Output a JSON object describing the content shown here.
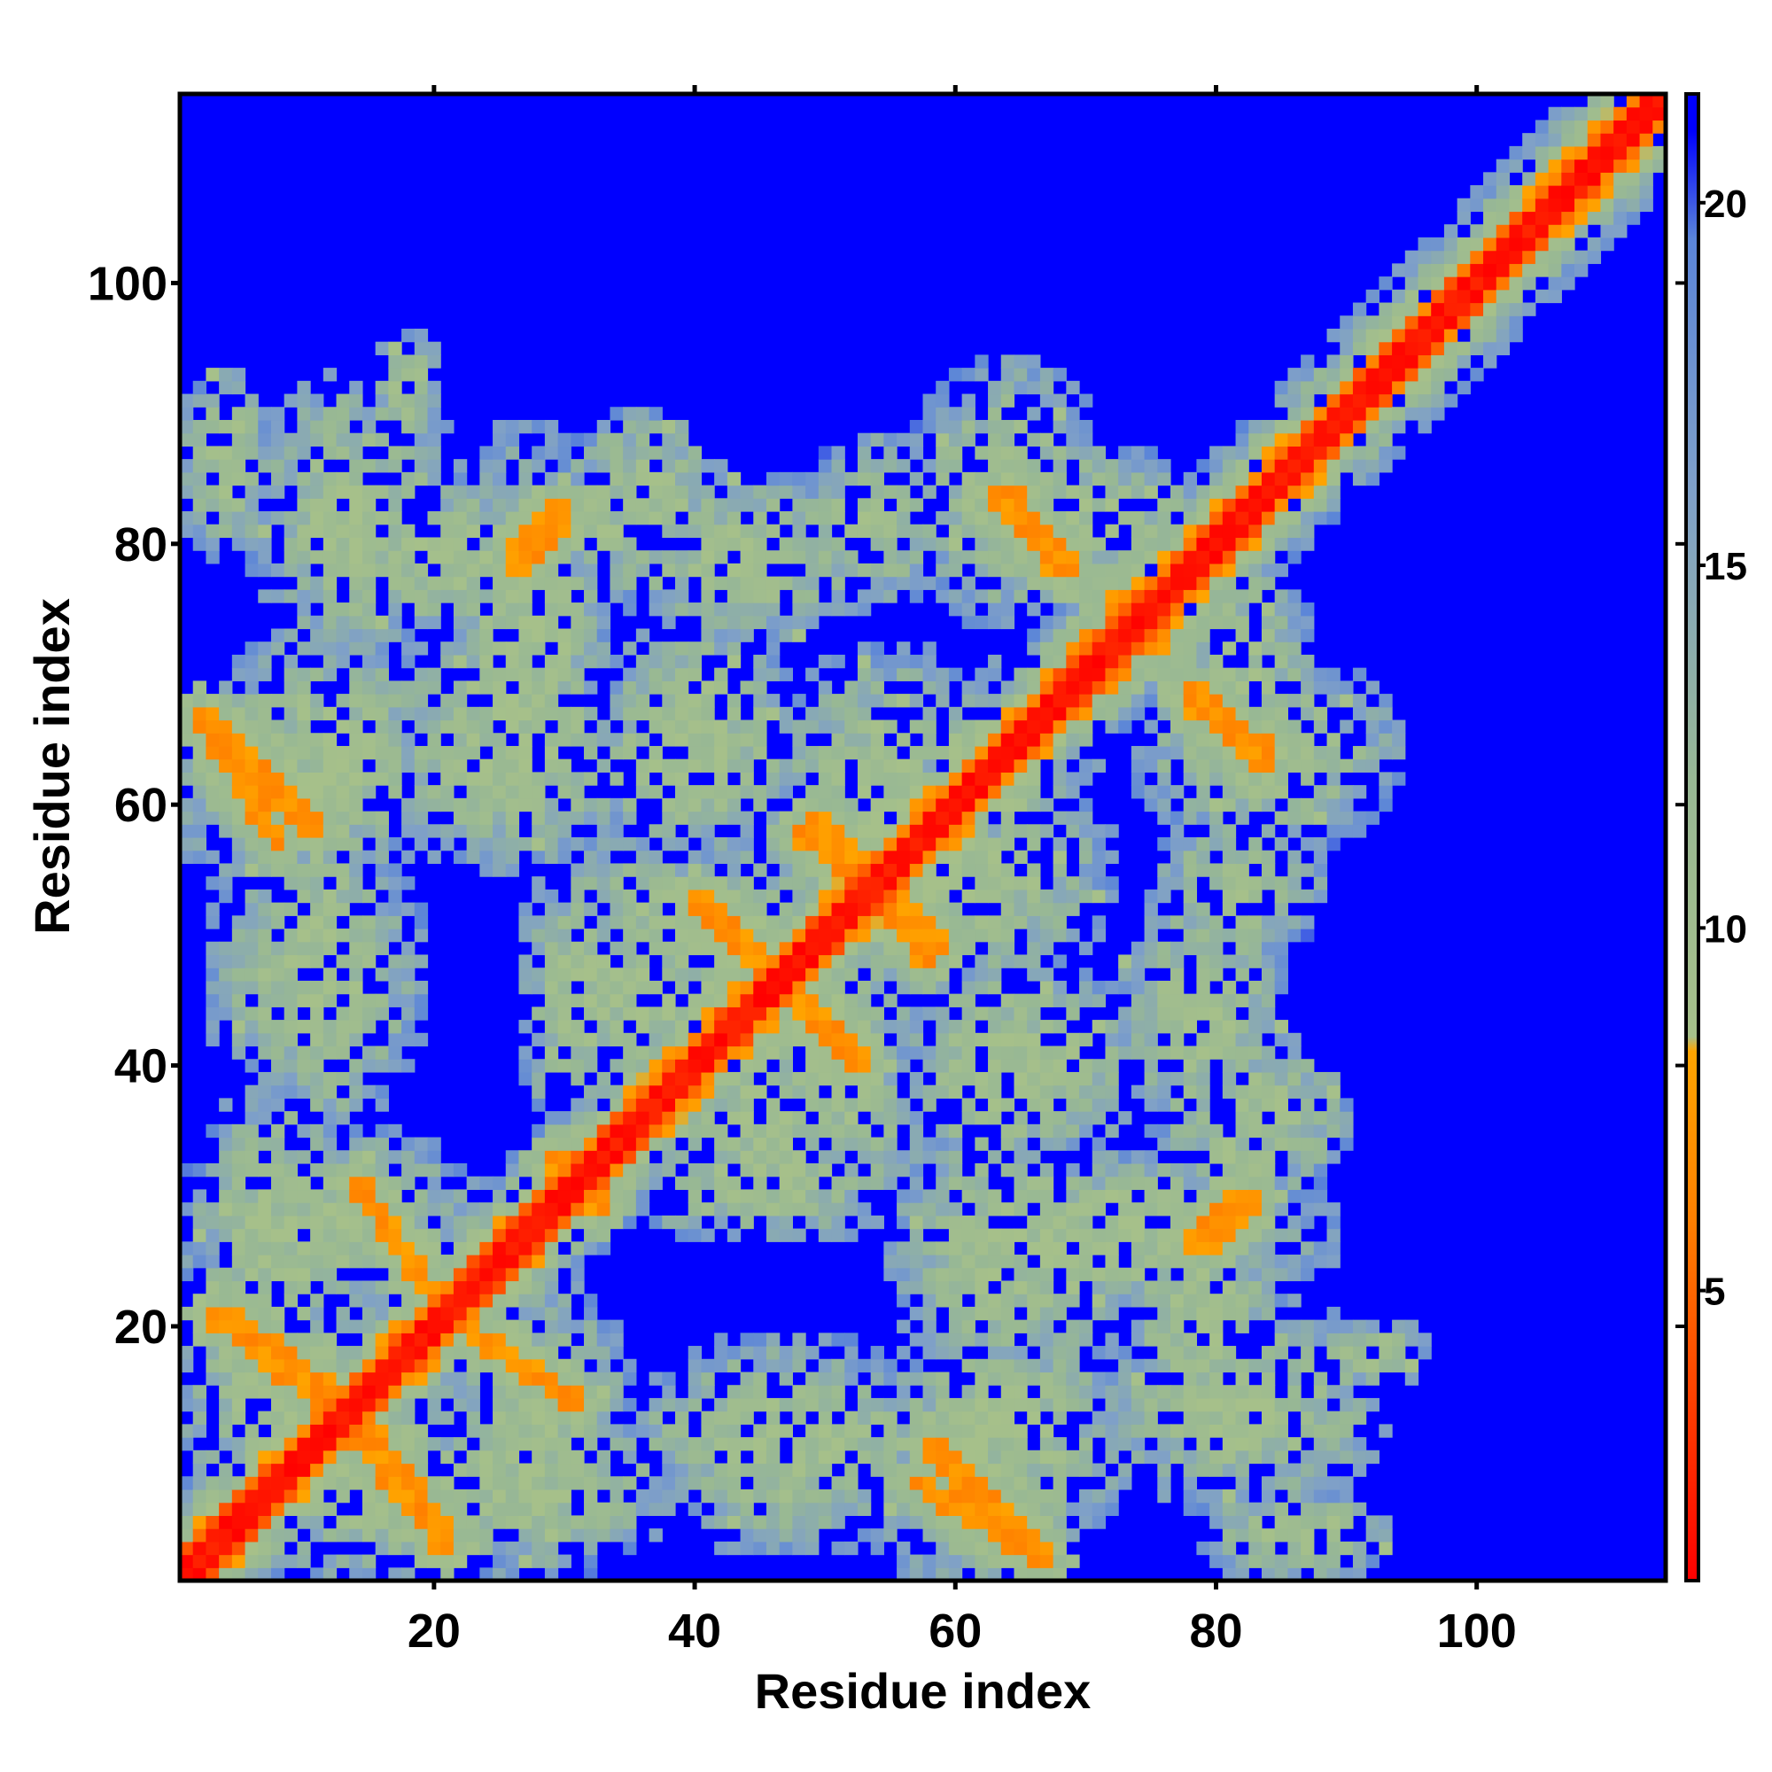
{
  "chart_data": {
    "type": "heatmap",
    "title": "",
    "xlabel": "Residue index",
    "ylabel": "Residue index",
    "n_residues": 114,
    "xlim": [
      0.5,
      114.5
    ],
    "ylim": [
      0.5,
      114.5
    ],
    "x_ticks": [
      20,
      40,
      60,
      80,
      100
    ],
    "y_ticks": [
      20,
      40,
      60,
      80,
      100
    ],
    "colorbar": {
      "ticks": [
        5,
        10,
        15,
        20
      ],
      "range": [
        1,
        21.5
      ],
      "stops": [
        {
          "value": 1,
          "color": "#ff0000"
        },
        {
          "value": 6,
          "color": "#ff8000"
        },
        {
          "value": 8.3,
          "color": "#ffa500"
        },
        {
          "value": 8.5,
          "color": "#a6c08a"
        },
        {
          "value": 12,
          "color": "#98b894"
        },
        {
          "value": 16,
          "color": "#7fa0c8"
        },
        {
          "value": 19.5,
          "color": "#5b85d8"
        },
        {
          "value": 21,
          "color": "#0000ff"
        }
      ]
    },
    "cutoff_value": 21,
    "diagonal": {
      "core_halfwidth": 1.5,
      "orange_halfwidth": 2.6,
      "halo_halfwidth": 7
    },
    "contact_lines": [
      {
        "x1": 2,
        "y1": 67,
        "x2": 11,
        "y2": 58,
        "kind": "anti"
      },
      {
        "x1": 4,
        "y1": 21,
        "x2": 12,
        "y2": 15,
        "kind": "anti"
      },
      {
        "x1": 14,
        "y1": 31,
        "x2": 21,
        "y2": 21,
        "kind": "anti"
      },
      {
        "x1": 21,
        "y1": 21,
        "x2": 31,
        "y2": 14,
        "kind": "anti"
      },
      {
        "x1": 13,
        "y1": 13,
        "x2": 21,
        "y2": 3,
        "kind": "anti"
      },
      {
        "x1": 57,
        "y1": 8,
        "x2": 67,
        "y2": 2,
        "kind": "anti"
      },
      {
        "x1": 41,
        "y1": 52,
        "x2": 46,
        "y2": 46,
        "kind": "anti"
      },
      {
        "x1": 47,
        "y1": 46,
        "x2": 53,
        "y2": 40,
        "kind": "anti"
      },
      {
        "x1": 48,
        "y1": 58,
        "x2": 54,
        "y2": 54,
        "kind": "anti"
      },
      {
        "x1": 54,
        "y1": 54,
        "x2": 59,
        "y2": 49,
        "kind": "anti"
      },
      {
        "x1": 64,
        "y1": 84,
        "x2": 69,
        "y2": 78,
        "kind": "anti"
      },
      {
        "x1": 69,
        "y1": 72,
        "x2": 73,
        "y2": 70,
        "kind": "anti"
      },
      {
        "x1": 72,
        "y1": 76,
        "x2": 76,
        "y2": 73,
        "kind": "anti"
      },
      {
        "x1": 78,
        "y1": 68,
        "x2": 84,
        "y2": 63,
        "kind": "anti"
      },
      {
        "x1": 26,
        "y1": 79,
        "x2": 30,
        "y2": 83,
        "kind": "par"
      },
      {
        "x1": 78,
        "y1": 26,
        "x2": 82,
        "y2": 30,
        "kind": "par"
      },
      {
        "x1": 29,
        "y1": 33,
        "x2": 33,
        "y2": 29,
        "kind": "anti"
      }
    ],
    "contact_regions": [
      {
        "cx": 20,
        "cy": 79,
        "rx": 14,
        "ry": 7
      },
      {
        "cx": 44,
        "cy": 79,
        "rx": 11,
        "ry": 7
      },
      {
        "cx": 70,
        "cy": 82,
        "rx": 10,
        "ry": 6
      },
      {
        "cx": 8,
        "cy": 62,
        "rx": 9,
        "ry": 10
      },
      {
        "cx": 26,
        "cy": 64,
        "rx": 12,
        "ry": 10
      },
      {
        "cx": 40,
        "cy": 64,
        "rx": 10,
        "ry": 9
      },
      {
        "cx": 11,
        "cy": 47,
        "rx": 9,
        "ry": 12
      },
      {
        "cx": 36,
        "cy": 46,
        "rx": 8,
        "ry": 15
      },
      {
        "cx": 62,
        "cy": 63,
        "rx": 10,
        "ry": 6
      },
      {
        "cx": 61,
        "cy": 55,
        "rx": 12,
        "ry": 10
      },
      {
        "cx": 46,
        "cy": 46,
        "rx": 14,
        "ry": 14
      },
      {
        "cx": 66,
        "cy": 40,
        "rx": 10,
        "ry": 8
      },
      {
        "cx": 84,
        "cy": 64,
        "rx": 11,
        "ry": 8
      },
      {
        "cx": 82,
        "cy": 54,
        "rx": 7,
        "ry": 6
      },
      {
        "cx": 83,
        "cy": 36,
        "rx": 8,
        "ry": 7
      },
      {
        "cx": 12,
        "cy": 28,
        "rx": 13,
        "ry": 8
      },
      {
        "cx": 10,
        "cy": 15,
        "rx": 12,
        "ry": 9
      },
      {
        "cx": 27,
        "cy": 8,
        "rx": 13,
        "ry": 7
      },
      {
        "cx": 47,
        "cy": 12,
        "rx": 14,
        "ry": 6
      },
      {
        "cx": 64,
        "cy": 12,
        "rx": 11,
        "ry": 9
      },
      {
        "cx": 82,
        "cy": 14,
        "rx": 12,
        "ry": 9
      },
      {
        "cx": 73,
        "cy": 27,
        "rx": 17,
        "ry": 7
      },
      {
        "cx": 45,
        "cy": 31,
        "rx": 12,
        "ry": 5
      },
      {
        "cx": 92,
        "cy": 18,
        "rx": 5,
        "ry": 3
      },
      {
        "cx": 86,
        "cy": 4,
        "rx": 8,
        "ry": 4
      }
    ]
  }
}
